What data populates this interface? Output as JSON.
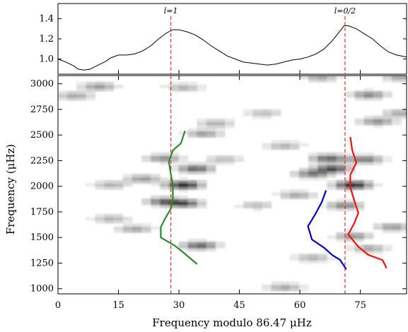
{
  "chart_data": [
    {
      "type": "line",
      "panel": "top",
      "xlim": [
        0,
        86.47
      ],
      "ylim": [
        0.85,
        1.55
      ],
      "y_ticks": [
        1.0,
        1.2,
        1.4
      ],
      "y_tick_labels": [
        "1.0",
        "1.2",
        "1.4"
      ],
      "series": [
        {
          "x": [
            0,
            2,
            4,
            5,
            6.5,
            8,
            10,
            12,
            13,
            15,
            17,
            19,
            21,
            23,
            25,
            27,
            28.5,
            30,
            32,
            34,
            36,
            38,
            40,
            42,
            44,
            46,
            48,
            50,
            52,
            54,
            56,
            58,
            60,
            62,
            64,
            66,
            68,
            70,
            71,
            72,
            74,
            76,
            78,
            80,
            82,
            84,
            86.47
          ],
          "y": [
            1.0,
            0.97,
            0.93,
            0.9,
            0.89,
            0.9,
            0.94,
            0.98,
            1.01,
            1.04,
            1.04,
            1.05,
            1.08,
            1.13,
            1.2,
            1.26,
            1.29,
            1.29,
            1.27,
            1.24,
            1.19,
            1.13,
            1.08,
            1.03,
            1.0,
            0.97,
            0.96,
            0.95,
            0.94,
            0.95,
            0.97,
            0.99,
            1.0,
            1.02,
            1.05,
            1.1,
            1.18,
            1.28,
            1.33,
            1.33,
            1.3,
            1.25,
            1.2,
            1.13,
            1.07,
            1.04,
            1.02
          ]
        }
      ],
      "annotations": [
        {
          "text": "l=1",
          "x": 28.0
        },
        {
          "text": "l=0/2",
          "x": 71.2
        }
      ]
    },
    {
      "type": "heatmap",
      "panel": "bottom",
      "xlabel": "Frequency modulo 86.47 μHz",
      "ylabel": "Frequency (μHz)",
      "xlim": [
        0,
        86.47
      ],
      "ylim": [
        950,
        3080
      ],
      "x_ticks": [
        0,
        15,
        30,
        45,
        60,
        75
      ],
      "x_tick_labels": [
        "0",
        "15",
        "30",
        "45",
        "60",
        "75"
      ],
      "y_ticks": [
        1000,
        1250,
        1500,
        1750,
        2000,
        2250,
        2500,
        2750,
        3000
      ],
      "y_tick_labels": [
        "1000",
        "1250",
        "1500",
        "1750",
        "2000",
        "2250",
        "2500",
        "2750",
        "3000"
      ],
      "vlines": [
        28.0,
        71.2
      ],
      "series": [
        {
          "color": "#2b8a2b",
          "points": [
            [
              31.5,
              2540
            ],
            [
              30.5,
              2420
            ],
            [
              28.5,
              2350
            ],
            [
              27.5,
              2240
            ],
            [
              28,
              2120
            ],
            [
              28.5,
              2000
            ],
            [
              28.5,
              1880
            ],
            [
              28,
              1780
            ],
            [
              26.5,
              1680
            ],
            [
              25.5,
              1600
            ],
            [
              25.5,
              1500
            ],
            [
              29,
              1420
            ],
            [
              31.5,
              1340
            ],
            [
              34.5,
              1240
            ]
          ]
        },
        {
          "color": "#0000cc",
          "points": [
            [
              66.5,
              1960
            ],
            [
              65.5,
              1850
            ],
            [
              64,
              1740
            ],
            [
              62.5,
              1640
            ],
            [
              62,
              1610
            ],
            [
              63,
              1480
            ],
            [
              66,
              1400
            ],
            [
              68,
              1330
            ],
            [
              70,
              1280
            ],
            [
              71.5,
              1190
            ]
          ]
        },
        {
          "color": "#ee1111",
          "points": [
            [
              72.5,
              2480
            ],
            [
              73,
              2350
            ],
            [
              74,
              2230
            ],
            [
              72.5,
              2110
            ],
            [
              72.5,
              1990
            ],
            [
              73.5,
              1860
            ],
            [
              74.5,
              1740
            ],
            [
              73.5,
              1640
            ],
            [
              72,
              1530
            ],
            [
              74.5,
              1410
            ],
            [
              77,
              1330
            ],
            [
              80.5,
              1280
            ],
            [
              81.5,
              1200
            ]
          ]
        }
      ],
      "heat_blobs": [
        {
          "x": 30,
          "y": 2000,
          "amp": 1.0
        },
        {
          "x": 33,
          "y": 2160,
          "amp": 0.7
        },
        {
          "x": 25,
          "y": 1840,
          "amp": 0.6
        },
        {
          "x": 30,
          "y": 1820,
          "amp": 0.75
        },
        {
          "x": 34,
          "y": 1410,
          "amp": 0.7
        },
        {
          "x": 25,
          "y": 2260,
          "amp": 0.5
        },
        {
          "x": 20,
          "y": 2060,
          "amp": 0.45
        },
        {
          "x": 12,
          "y": 2000,
          "amp": 0.35
        },
        {
          "x": 18,
          "y": 1570,
          "amp": 0.4
        },
        {
          "x": 35,
          "y": 2500,
          "amp": 0.45
        },
        {
          "x": 12,
          "y": 1670,
          "amp": 0.35
        },
        {
          "x": 40,
          "y": 2250,
          "amp": 0.3
        },
        {
          "x": 9,
          "y": 2960,
          "amp": 0.45
        },
        {
          "x": 3,
          "y": 2870,
          "amp": 0.4
        },
        {
          "x": 30,
          "y": 2950,
          "amp": 0.35
        },
        {
          "x": 38,
          "y": 2600,
          "amp": 0.35
        },
        {
          "x": 72,
          "y": 2000,
          "amp": 1.0
        },
        {
          "x": 67,
          "y": 2160,
          "amp": 0.8
        },
        {
          "x": 66,
          "y": 2260,
          "amp": 0.7
        },
        {
          "x": 62,
          "y": 2110,
          "amp": 0.6
        },
        {
          "x": 75,
          "y": 2250,
          "amp": 0.6
        },
        {
          "x": 70,
          "y": 1800,
          "amp": 0.55
        },
        {
          "x": 76,
          "y": 2880,
          "amp": 0.55
        },
        {
          "x": 78,
          "y": 2620,
          "amp": 0.5
        },
        {
          "x": 84,
          "y": 2700,
          "amp": 0.4
        },
        {
          "x": 82,
          "y": 1590,
          "amp": 0.45
        },
        {
          "x": 72,
          "y": 1500,
          "amp": 0.5
        },
        {
          "x": 76,
          "y": 1380,
          "amp": 0.4
        },
        {
          "x": 58,
          "y": 1900,
          "amp": 0.4
        },
        {
          "x": 55,
          "y": 2380,
          "amp": 0.35
        },
        {
          "x": 55,
          "y": 1000,
          "amp": 0.4
        },
        {
          "x": 62,
          "y": 1290,
          "amp": 0.35
        },
        {
          "x": 48,
          "y": 1800,
          "amp": 0.3
        },
        {
          "x": 64,
          "y": 3050,
          "amp": 0.4
        },
        {
          "x": 84,
          "y": 3050,
          "amp": 0.4
        },
        {
          "x": 50,
          "y": 2700,
          "amp": 0.3
        }
      ]
    }
  ]
}
